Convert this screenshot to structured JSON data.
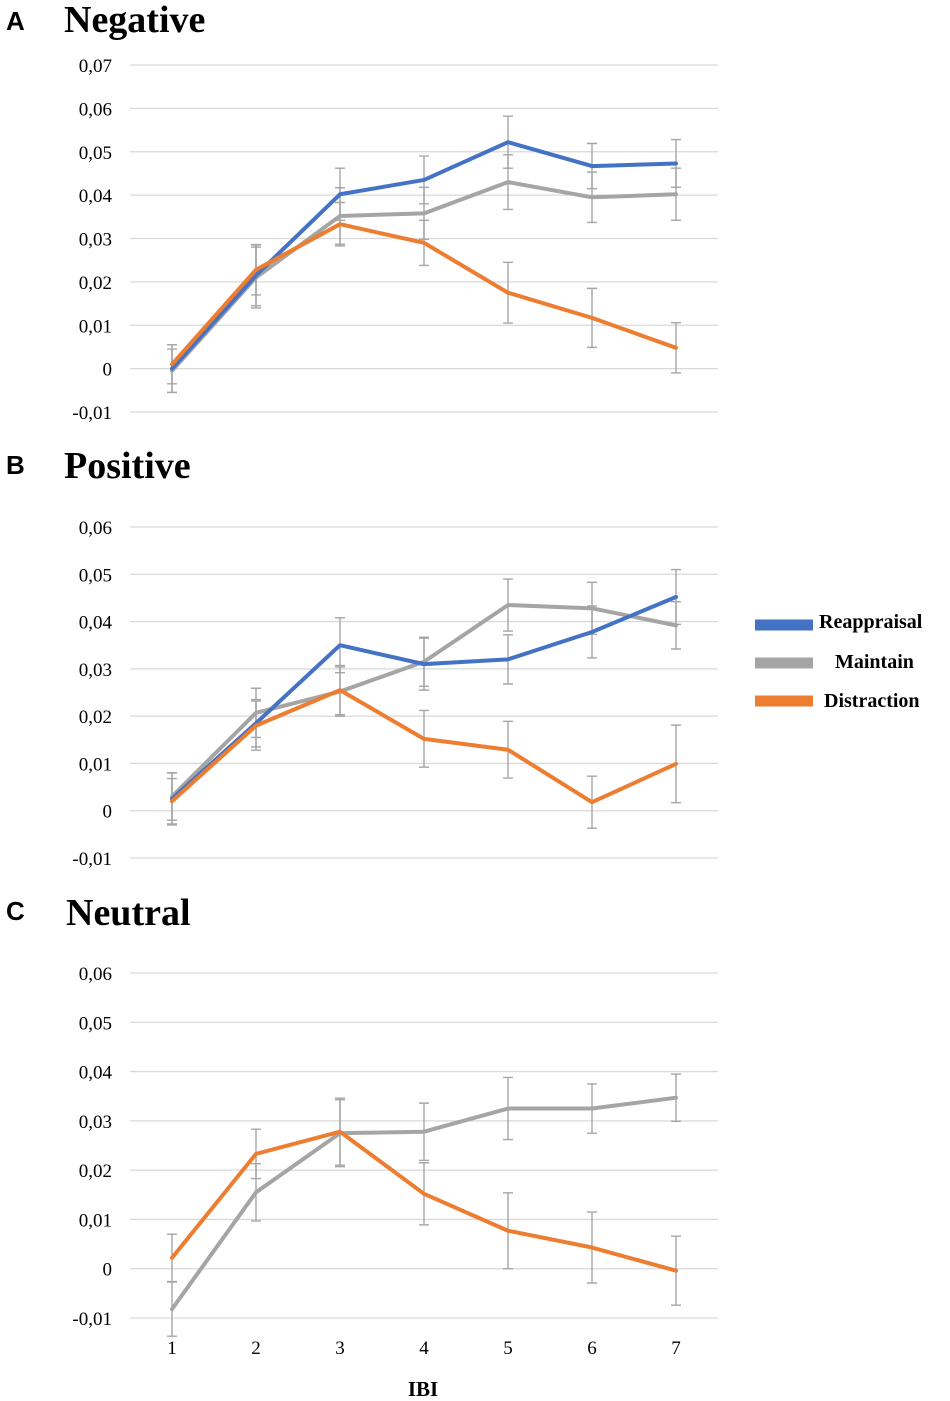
{
  "figure": {
    "x_axis_label": "IBI",
    "legend": [
      {
        "name": "Reappraisal",
        "color": "#4472c4"
      },
      {
        "name": "Maintain",
        "color": "#a5a5a5"
      },
      {
        "name": "Distraction",
        "color": "#ed7d31"
      }
    ]
  },
  "chart_data": [
    {
      "type": "line",
      "panel": "A",
      "title": "Negative",
      "xlabel": "",
      "ylabel": "",
      "x": [
        1,
        2,
        3,
        4,
        5,
        6,
        7
      ],
      "x_tick_labels": [],
      "ylim": [
        -0.01,
        0.07
      ],
      "y_ticks": [
        -0.01,
        0,
        0.01,
        0.02,
        0.03,
        0.04,
        0.05,
        0.06,
        0.07
      ],
      "y_tick_labels": [
        "-0,01",
        "0",
        "0,01",
        "0,02",
        "0,03",
        "0,04",
        "0,05",
        "0,06",
        "0,07"
      ],
      "grid": true,
      "series": [
        {
          "name": "Reappraisal",
          "color": "#4472c4",
          "values": [
            0.0,
            0.0215,
            0.0402,
            0.0435,
            0.0522,
            0.0467,
            0.0473
          ],
          "errors": [
            0.0055,
            0.007,
            0.006,
            0.0055,
            0.006,
            0.0052,
            0.0055
          ]
        },
        {
          "name": "Maintain",
          "color": "#a5a5a5",
          "values": [
            -0.0005,
            0.021,
            0.0352,
            0.0358,
            0.043,
            0.0395,
            0.0402
          ],
          "errors": [
            0.005,
            0.007,
            0.0065,
            0.006,
            0.0063,
            0.0058,
            0.006
          ]
        },
        {
          "name": "Distraction",
          "color": "#ed7d31",
          "values": [
            0.001,
            0.0228,
            0.0333,
            0.029,
            0.0175,
            0.0117,
            0.0048
          ],
          "errors": [
            0.0045,
            0.0058,
            0.005,
            0.0052,
            0.007,
            0.0068,
            0.0058
          ]
        }
      ]
    },
    {
      "type": "line",
      "panel": "B",
      "title": "Positive",
      "xlabel": "",
      "ylabel": "",
      "x": [
        1,
        2,
        3,
        4,
        5,
        6,
        7
      ],
      "x_tick_labels": [],
      "ylim": [
        -0.01,
        0.06
      ],
      "y_ticks": [
        -0.01,
        0,
        0.01,
        0.02,
        0.03,
        0.04,
        0.05,
        0.06
      ],
      "y_tick_labels": [
        "-0,01",
        "0",
        "0,01",
        "0,02",
        "0,03",
        "0,04",
        "0,05",
        "0,06"
      ],
      "grid": true,
      "series": [
        {
          "name": "Reappraisal",
          "color": "#4472c4",
          "values": [
            0.0025,
            0.0185,
            0.035,
            0.031,
            0.032,
            0.0378,
            0.0452
          ],
          "errors": [
            0.0055,
            0.005,
            0.0058,
            0.0055,
            0.0052,
            0.0055,
            0.0058
          ]
        },
        {
          "name": "Maintain",
          "color": "#a5a5a5",
          "values": [
            0.003,
            0.0207,
            0.0252,
            0.0315,
            0.0435,
            0.0428,
            0.0392
          ],
          "errors": [
            0.005,
            0.0052,
            0.0052,
            0.0052,
            0.0055,
            0.0055,
            0.005
          ]
        },
        {
          "name": "Distraction",
          "color": "#ed7d31",
          "values": [
            0.002,
            0.018,
            0.0255,
            0.0152,
            0.0129,
            0.0018,
            0.0099
          ],
          "errors": [
            0.0048,
            0.0052,
            0.0052,
            0.006,
            0.006,
            0.0055,
            0.0082
          ]
        }
      ]
    },
    {
      "type": "line",
      "panel": "C",
      "title": "Neutral",
      "xlabel": "IBI",
      "ylabel": "",
      "x": [
        1,
        2,
        3,
        4,
        5,
        6,
        7
      ],
      "x_tick_labels": [
        "1",
        "2",
        "3",
        "4",
        "5",
        "6",
        "7"
      ],
      "ylim": [
        -0.01,
        0.06
      ],
      "y_ticks": [
        -0.01,
        0,
        0.01,
        0.02,
        0.03,
        0.04,
        0.05,
        0.06
      ],
      "y_tick_labels": [
        "-0,01",
        "0",
        "0,01",
        "0,02",
        "0,03",
        "0,04",
        "0,05",
        "0,06"
      ],
      "grid": true,
      "series": [
        {
          "name": "Maintain",
          "color": "#a5a5a5",
          "values": [
            -0.0082,
            0.0155,
            0.0275,
            0.0278,
            0.0325,
            0.0325,
            0.0347
          ],
          "errors": [
            0.0055,
            0.0058,
            0.0068,
            0.0058,
            0.0063,
            0.005,
            0.0048
          ]
        },
        {
          "name": "Distraction",
          "color": "#ed7d31",
          "values": [
            0.0022,
            0.0233,
            0.0278,
            0.0152,
            0.0077,
            0.0043,
            -0.0004
          ],
          "errors": [
            0.0048,
            0.005,
            0.0068,
            0.0063,
            0.0077,
            0.0072,
            0.007
          ]
        }
      ]
    }
  ]
}
